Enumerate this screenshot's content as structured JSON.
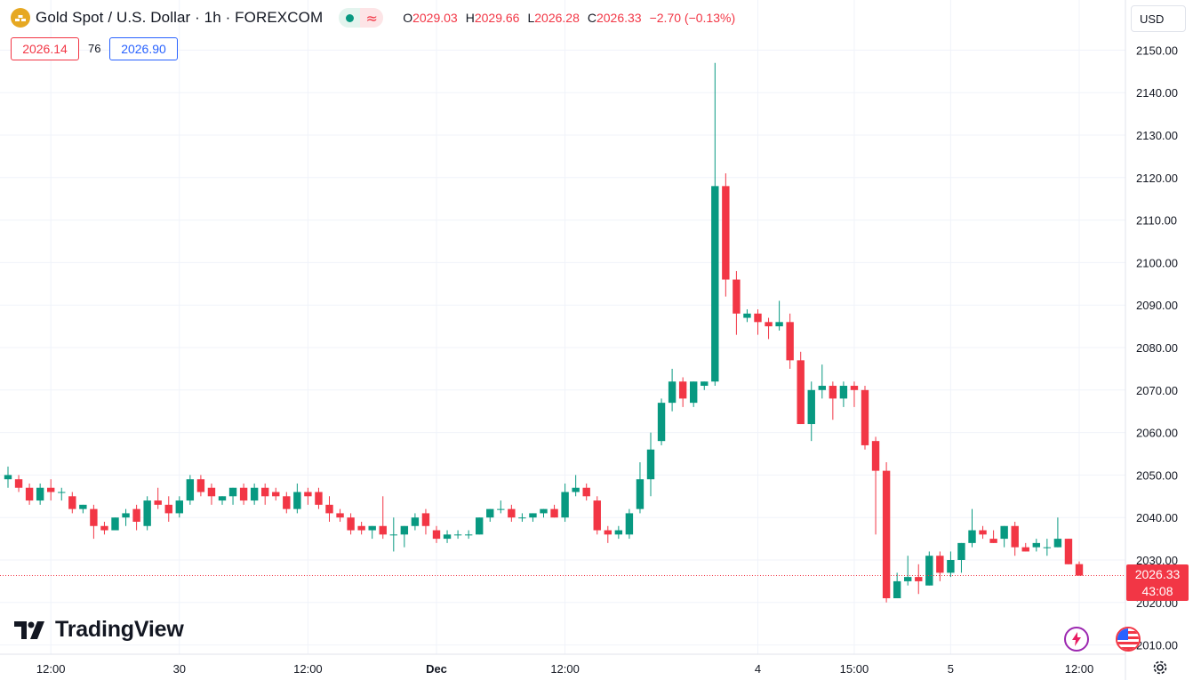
{
  "header": {
    "title": "Gold Spot / U.S. Dollar · 1h · FOREXCOM",
    "ohlc": [
      {
        "key": "O",
        "value": "2029.03"
      },
      {
        "key": "H",
        "value": "2029.66"
      },
      {
        "key": "L",
        "value": "2026.28"
      },
      {
        "key": "C",
        "value": "2026.33"
      }
    ],
    "change": "−2.70 (−0.13%)"
  },
  "quotes": {
    "bid": "2026.14",
    "spread": "76",
    "ask": "2026.90"
  },
  "currency": "USD",
  "last_price": {
    "price": "2026.33",
    "countdown": "43:08"
  },
  "branding": {
    "logo_text": "TradingView"
  },
  "colors": {
    "up": "#089981",
    "down": "#f23645",
    "grid": "#f0f3fa",
    "text": "#131722",
    "accent": "#2962ff"
  },
  "chart_data": {
    "type": "candlestick",
    "title": "Gold Spot / U.S. Dollar",
    "interval": "1h",
    "y_ticks": [
      2010,
      2020,
      2030,
      2040,
      2050,
      2060,
      2070,
      2080,
      2090,
      2100,
      2110,
      2120,
      2130,
      2140,
      2150
    ],
    "ylim": [
      2007.5,
      2152
    ],
    "x_ticks": [
      {
        "label": "12:00",
        "bar": 4,
        "bold": false
      },
      {
        "label": "30",
        "bar": 16,
        "bold": false
      },
      {
        "label": "12:00",
        "bar": 28,
        "bold": false
      },
      {
        "label": "Dec",
        "bar": 40,
        "bold": true
      },
      {
        "label": "12:00",
        "bar": 52,
        "bold": false
      },
      {
        "label": "4",
        "bar": 70,
        "bold": false
      },
      {
        "label": "15:00",
        "bar": 79,
        "bold": false
      },
      {
        "label": "5",
        "bar": 88,
        "bold": false
      },
      {
        "label": "12:00",
        "bar": 100,
        "bold": false
      }
    ],
    "candles": [
      {
        "o": 2049,
        "h": 2052,
        "l": 2047,
        "c": 2050
      },
      {
        "o": 2049,
        "h": 2050,
        "l": 2046,
        "c": 2047
      },
      {
        "o": 2047,
        "h": 2048,
        "l": 2043,
        "c": 2044
      },
      {
        "o": 2044,
        "h": 2048,
        "l": 2043,
        "c": 2047
      },
      {
        "o": 2047,
        "h": 2049,
        "l": 2044,
        "c": 2046
      },
      {
        "o": 2046,
        "h": 2047,
        "l": 2044,
        "c": 2046
      },
      {
        "o": 2045,
        "h": 2046,
        "l": 2041,
        "c": 2042
      },
      {
        "o": 2042,
        "h": 2043,
        "l": 2041,
        "c": 2043
      },
      {
        "o": 2042,
        "h": 2043,
        "l": 2035,
        "c": 2038
      },
      {
        "o": 2038,
        "h": 2039,
        "l": 2036,
        "c": 2037
      },
      {
        "o": 2037,
        "h": 2040,
        "l": 2037,
        "c": 2040
      },
      {
        "o": 2040,
        "h": 2042,
        "l": 2038,
        "c": 2041
      },
      {
        "o": 2042,
        "h": 2043,
        "l": 2037,
        "c": 2039
      },
      {
        "o": 2038,
        "h": 2045,
        "l": 2037,
        "c": 2044
      },
      {
        "o": 2044,
        "h": 2047,
        "l": 2042,
        "c": 2043
      },
      {
        "o": 2043,
        "h": 2045,
        "l": 2039,
        "c": 2041
      },
      {
        "o": 2041,
        "h": 2045,
        "l": 2040,
        "c": 2044
      },
      {
        "o": 2044,
        "h": 2050,
        "l": 2043,
        "c": 2049
      },
      {
        "o": 2049,
        "h": 2050,
        "l": 2045,
        "c": 2046
      },
      {
        "o": 2047,
        "h": 2048,
        "l": 2043,
        "c": 2045
      },
      {
        "o": 2044,
        "h": 2045,
        "l": 2043,
        "c": 2045
      },
      {
        "o": 2045,
        "h": 2047,
        "l": 2043,
        "c": 2047
      },
      {
        "o": 2047,
        "h": 2048,
        "l": 2043,
        "c": 2044
      },
      {
        "o": 2044,
        "h": 2048,
        "l": 2043,
        "c": 2047
      },
      {
        "o": 2047,
        "h": 2048,
        "l": 2043,
        "c": 2045
      },
      {
        "o": 2046,
        "h": 2047,
        "l": 2044,
        "c": 2045
      },
      {
        "o": 2045,
        "h": 2046,
        "l": 2041,
        "c": 2042
      },
      {
        "o": 2042,
        "h": 2048,
        "l": 2041,
        "c": 2046
      },
      {
        "o": 2046,
        "h": 2047,
        "l": 2043,
        "c": 2045
      },
      {
        "o": 2046,
        "h": 2047,
        "l": 2042,
        "c": 2043
      },
      {
        "o": 2043,
        "h": 2045,
        "l": 2039,
        "c": 2041
      },
      {
        "o": 2041,
        "h": 2042,
        "l": 2039,
        "c": 2040
      },
      {
        "o": 2040,
        "h": 2041,
        "l": 2036,
        "c": 2037
      },
      {
        "o": 2038,
        "h": 2039,
        "l": 2036,
        "c": 2037
      },
      {
        "o": 2037,
        "h": 2038,
        "l": 2035,
        "c": 2038
      },
      {
        "o": 2038,
        "h": 2045,
        "l": 2035,
        "c": 2036
      },
      {
        "o": 2036,
        "h": 2040,
        "l": 2032,
        "c": 2036
      },
      {
        "o": 2036,
        "h": 2038,
        "l": 2033,
        "c": 2038
      },
      {
        "o": 2038,
        "h": 2041,
        "l": 2037,
        "c": 2040
      },
      {
        "o": 2041,
        "h": 2042,
        "l": 2036,
        "c": 2038
      },
      {
        "o": 2037,
        "h": 2038,
        "l": 2034,
        "c": 2035
      },
      {
        "o": 2035,
        "h": 2037,
        "l": 2034,
        "c": 2036
      },
      {
        "o": 2036,
        "h": 2037,
        "l": 2035,
        "c": 2036
      },
      {
        "o": 2036,
        "h": 2037,
        "l": 2035,
        "c": 2036
      },
      {
        "o": 2036,
        "h": 2040,
        "l": 2036,
        "c": 2040
      },
      {
        "o": 2040,
        "h": 2042,
        "l": 2039,
        "c": 2042
      },
      {
        "o": 2042,
        "h": 2044,
        "l": 2041,
        "c": 2042
      },
      {
        "o": 2042,
        "h": 2043,
        "l": 2039,
        "c": 2040
      },
      {
        "o": 2040,
        "h": 2041,
        "l": 2039,
        "c": 2040
      },
      {
        "o": 2040,
        "h": 2041,
        "l": 2039,
        "c": 2041
      },
      {
        "o": 2041,
        "h": 2042,
        "l": 2040,
        "c": 2042
      },
      {
        "o": 2042,
        "h": 2043,
        "l": 2040,
        "c": 2040
      },
      {
        "o": 2040,
        "h": 2048,
        "l": 2039,
        "c": 2046
      },
      {
        "o": 2046,
        "h": 2050,
        "l": 2045,
        "c": 2047
      },
      {
        "o": 2047,
        "h": 2048,
        "l": 2044,
        "c": 2045
      },
      {
        "o": 2044,
        "h": 2045,
        "l": 2036,
        "c": 2037
      },
      {
        "o": 2037,
        "h": 2038,
        "l": 2034,
        "c": 2036
      },
      {
        "o": 2036,
        "h": 2038,
        "l": 2035,
        "c": 2037
      },
      {
        "o": 2036,
        "h": 2042,
        "l": 2035,
        "c": 2041
      },
      {
        "o": 2042,
        "h": 2053,
        "l": 2041,
        "c": 2049
      },
      {
        "o": 2049,
        "h": 2060,
        "l": 2045,
        "c": 2056
      },
      {
        "o": 2058,
        "h": 2068,
        "l": 2057,
        "c": 2067
      },
      {
        "o": 2067,
        "h": 2075,
        "l": 2065,
        "c": 2072
      },
      {
        "o": 2072,
        "h": 2073,
        "l": 2066,
        "c": 2068
      },
      {
        "o": 2067,
        "h": 2072,
        "l": 2066,
        "c": 2072
      },
      {
        "o": 2071,
        "h": 2072,
        "l": 2070,
        "c": 2072
      },
      {
        "o": 2072,
        "h": 2147,
        "l": 2071,
        "c": 2118
      },
      {
        "o": 2118,
        "h": 2121,
        "l": 2092,
        "c": 2096
      },
      {
        "o": 2096,
        "h": 2098,
        "l": 2083,
        "c": 2088
      },
      {
        "o": 2087,
        "h": 2089,
        "l": 2086,
        "c": 2088
      },
      {
        "o": 2088,
        "h": 2089,
        "l": 2083,
        "c": 2086
      },
      {
        "o": 2086,
        "h": 2087,
        "l": 2082,
        "c": 2085
      },
      {
        "o": 2085,
        "h": 2091,
        "l": 2084,
        "c": 2086
      },
      {
        "o": 2086,
        "h": 2088,
        "l": 2075,
        "c": 2077
      },
      {
        "o": 2077,
        "h": 2079,
        "l": 2062,
        "c": 2062
      },
      {
        "o": 2062,
        "h": 2072,
        "l": 2058,
        "c": 2070
      },
      {
        "o": 2070,
        "h": 2076,
        "l": 2068,
        "c": 2071
      },
      {
        "o": 2071,
        "h": 2072,
        "l": 2063,
        "c": 2068
      },
      {
        "o": 2068,
        "h": 2072,
        "l": 2066,
        "c": 2071
      },
      {
        "o": 2071,
        "h": 2072,
        "l": 2066,
        "c": 2070
      },
      {
        "o": 2070,
        "h": 2071,
        "l": 2056,
        "c": 2057
      },
      {
        "o": 2058,
        "h": 2059,
        "l": 2036,
        "c": 2051
      },
      {
        "o": 2051,
        "h": 2053,
        "l": 2020,
        "c": 2021
      },
      {
        "o": 2021,
        "h": 2027,
        "l": 2021,
        "c": 2025
      },
      {
        "o": 2025,
        "h": 2031,
        "l": 2024,
        "c": 2026
      },
      {
        "o": 2026,
        "h": 2029,
        "l": 2022,
        "c": 2025
      },
      {
        "o": 2024,
        "h": 2032,
        "l": 2024,
        "c": 2031
      },
      {
        "o": 2031,
        "h": 2032,
        "l": 2025,
        "c": 2027
      },
      {
        "o": 2027,
        "h": 2032,
        "l": 2026,
        "c": 2030
      },
      {
        "o": 2030,
        "h": 2034,
        "l": 2027,
        "c": 2034
      },
      {
        "o": 2034,
        "h": 2042,
        "l": 2033,
        "c": 2037
      },
      {
        "o": 2037,
        "h": 2038,
        "l": 2035,
        "c": 2036
      },
      {
        "o": 2035,
        "h": 2037,
        "l": 2034,
        "c": 2034
      },
      {
        "o": 2035,
        "h": 2038,
        "l": 2033,
        "c": 2038
      },
      {
        "o": 2038,
        "h": 2039,
        "l": 2031,
        "c": 2033
      },
      {
        "o": 2033,
        "h": 2034,
        "l": 2032,
        "c": 2032
      },
      {
        "o": 2033,
        "h": 2035,
        "l": 2032,
        "c": 2034
      },
      {
        "o": 2033,
        "h": 2035,
        "l": 2031,
        "c": 2033
      },
      {
        "o": 2033,
        "h": 2040,
        "l": 2033,
        "c": 2035
      },
      {
        "o": 2035,
        "h": 2035,
        "l": 2029,
        "c": 2029
      },
      {
        "o": 2029.03,
        "h": 2029.66,
        "l": 2026.28,
        "c": 2026.33
      }
    ]
  }
}
